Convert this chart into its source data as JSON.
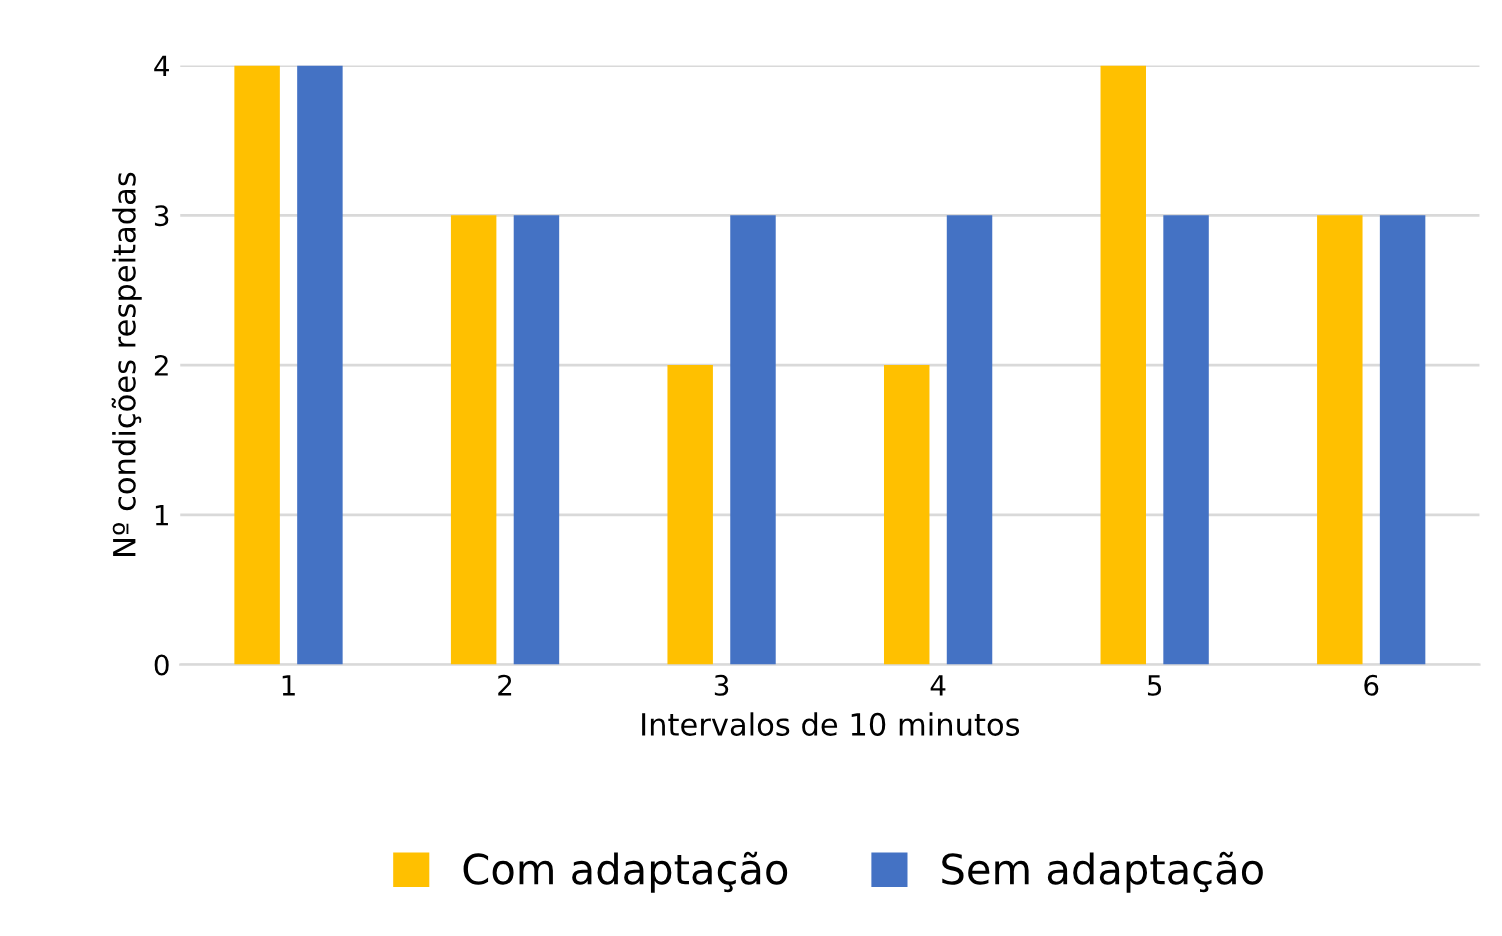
{
  "chart_data": {
    "type": "bar",
    "xlabel": "Intervalos de 10 minutos",
    "ylabel": "Nº condições respeitadas",
    "categories": [
      "1",
      "2",
      "3",
      "4",
      "5",
      "6"
    ],
    "series": [
      {
        "name": "Com adaptação",
        "color": "#ffc000",
        "values": [
          4,
          3,
          2,
          2,
          4,
          3
        ]
      },
      {
        "name": "Sem adaptação",
        "color": "#4472c4",
        "values": [
          4,
          3,
          3,
          3,
          3,
          3
        ]
      }
    ],
    "ylim": [
      0,
      4
    ],
    "yticks": [
      0,
      1,
      2,
      3,
      4
    ],
    "grid": "y",
    "legend": "bottom"
  }
}
